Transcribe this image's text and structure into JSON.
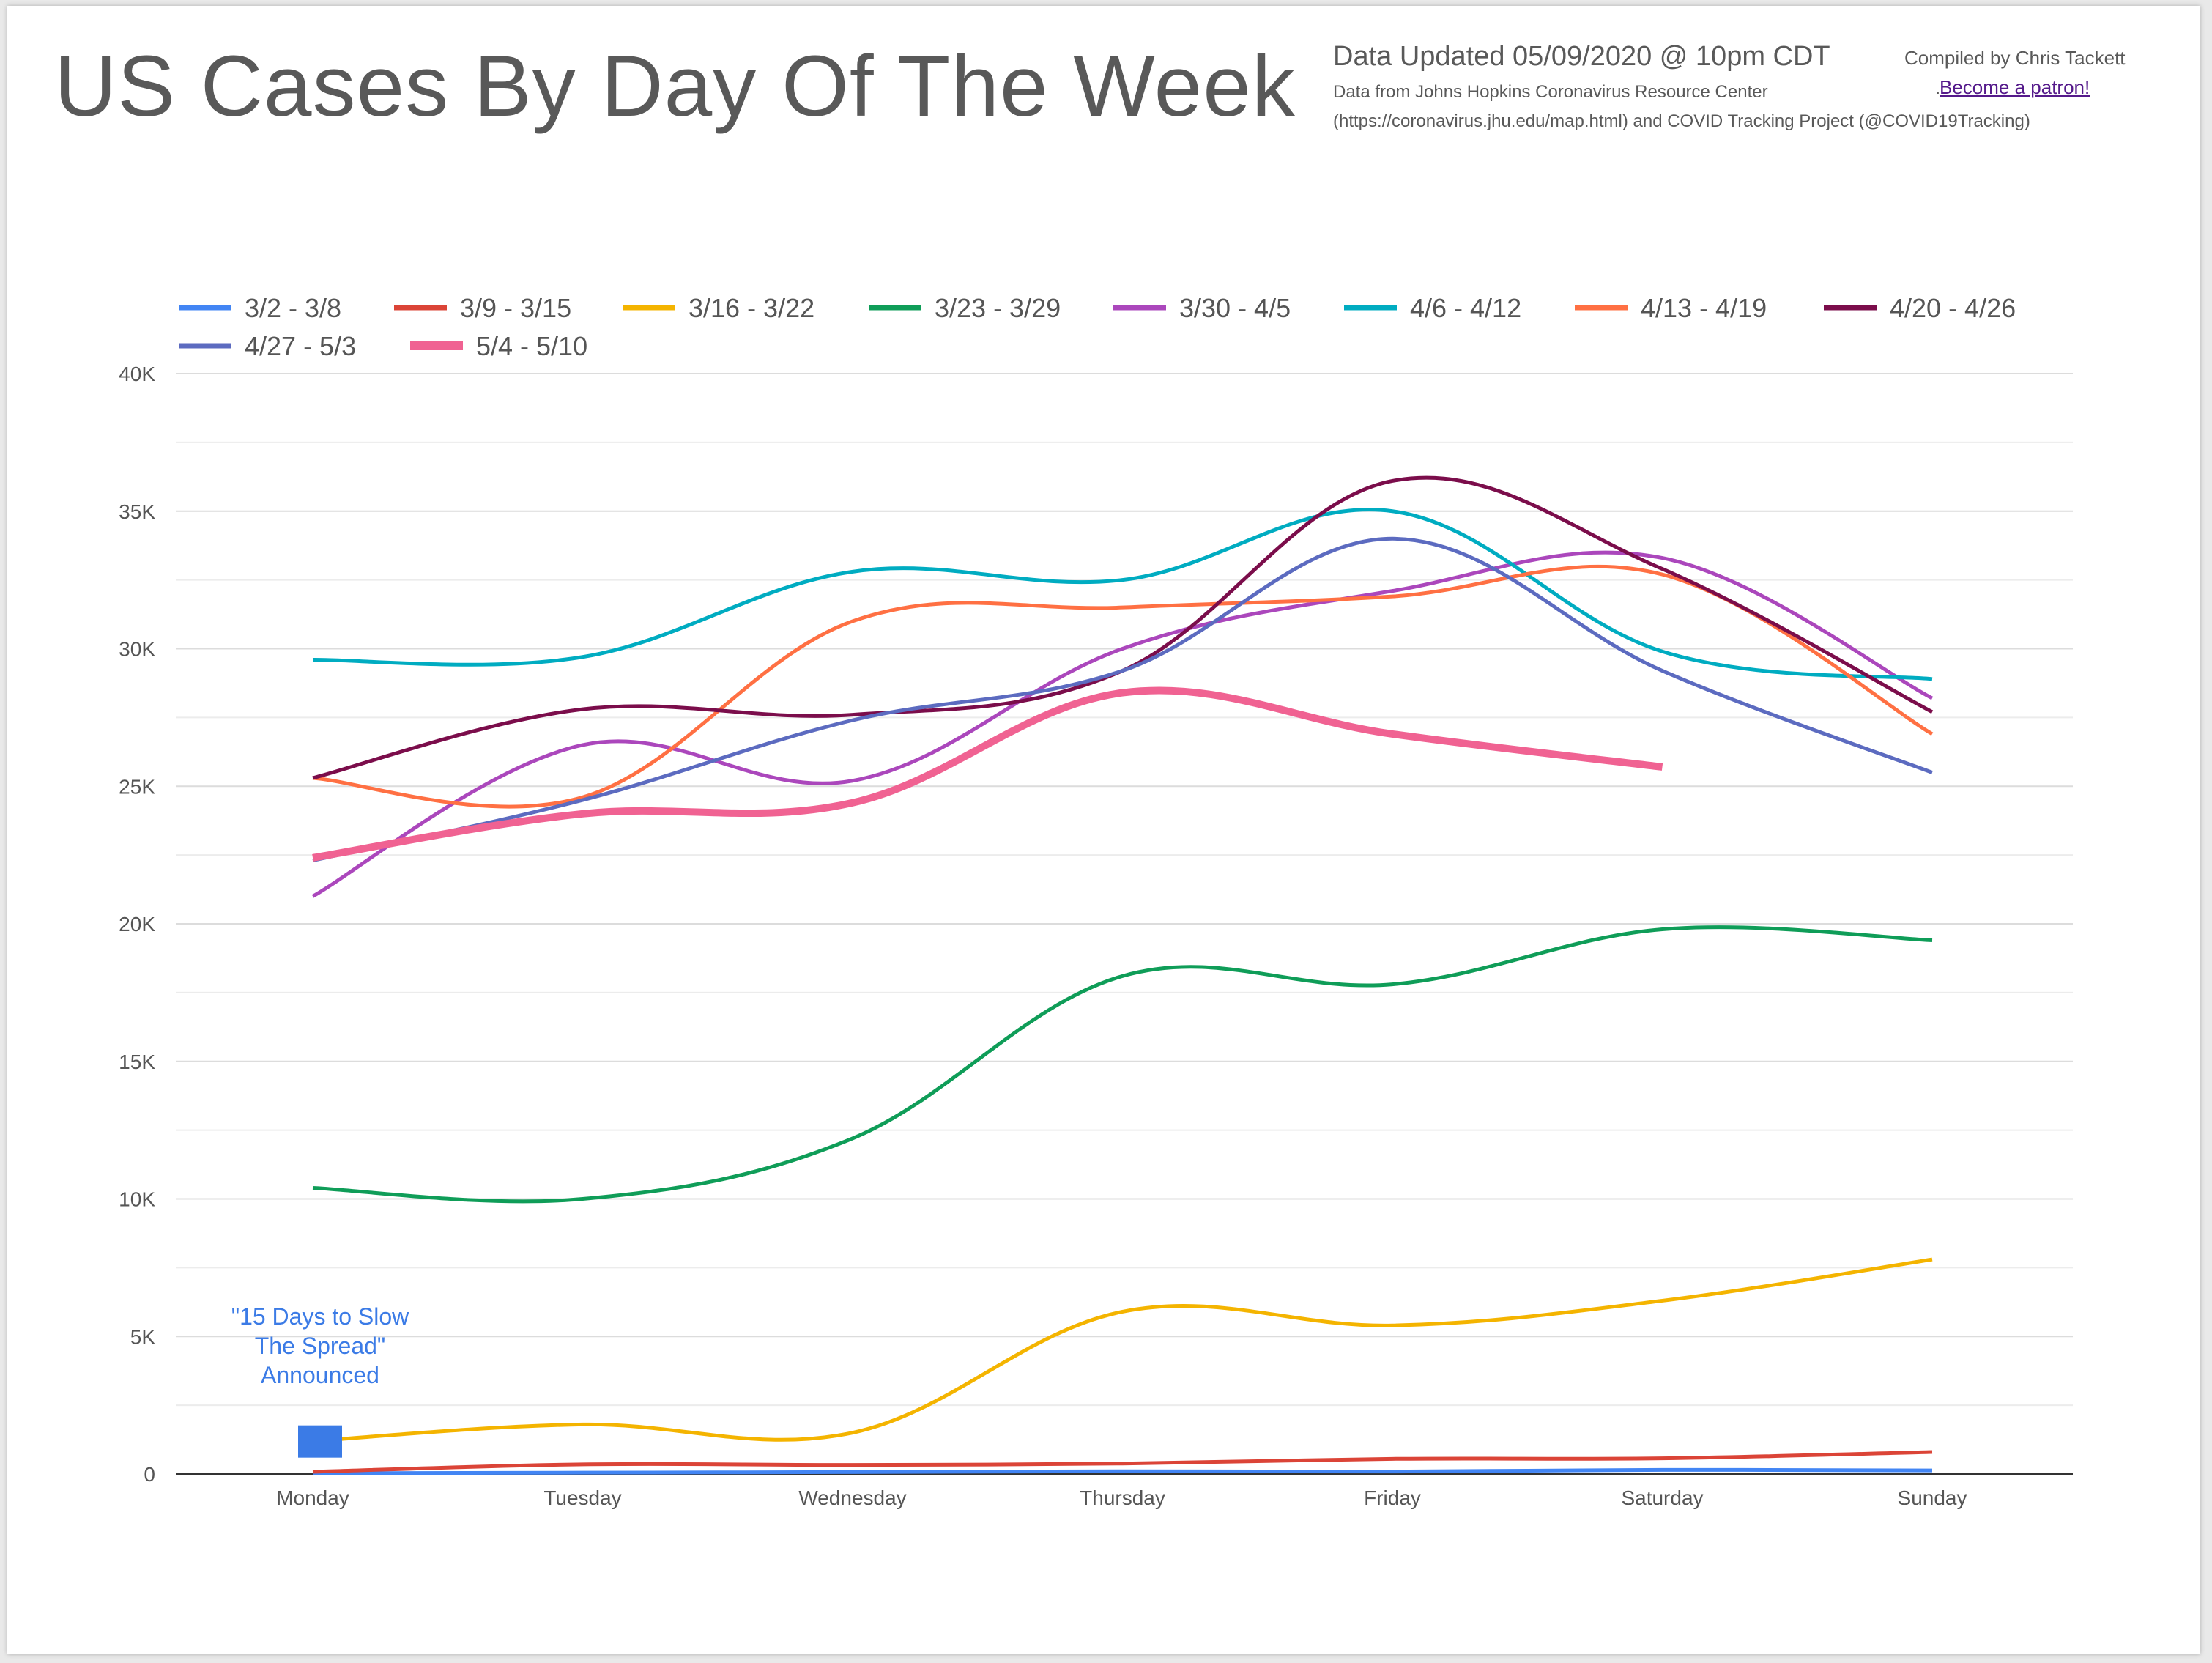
{
  "header": {
    "title": "US Cases By Day Of The Week",
    "updated": "Data Updated 05/09/2020 @ 10pm CDT",
    "source_line1": "Data from Johns Hopkins Coronavirus Resource Center",
    "source_line2": "(https://coronavirus.jhu.edu/map.html) and COVID Tracking Project (@COVID19Tracking)",
    "compiled_by": "Compiled by Chris Tackett",
    "patron_prefix": ".",
    "patron_link": "Become a patron!"
  },
  "annotation": {
    "lines": [
      "\"15 Days to Slow",
      "The Spread\"",
      "Announced"
    ],
    "category": "Monday",
    "value": 1500,
    "color": "#3b7be6"
  },
  "chart_data": {
    "type": "line",
    "title": "US Cases By Day Of The Week",
    "xlabel": "",
    "ylabel": "",
    "ylim": [
      0,
      40000
    ],
    "y_ticks": [
      0,
      5000,
      10000,
      15000,
      20000,
      25000,
      30000,
      35000,
      40000
    ],
    "y_tick_labels": [
      "0",
      "5K",
      "10K",
      "15K",
      "20K",
      "25K",
      "30K",
      "35K",
      "40K"
    ],
    "grid": true,
    "legend_position": "top",
    "categories": [
      "Monday",
      "Tuesday",
      "Wednesday",
      "Thursday",
      "Friday",
      "Saturday",
      "Sunday"
    ],
    "series": [
      {
        "name": "3/2 - 3/8",
        "color": "#4285f4",
        "width": 5,
        "values": [
          30,
          50,
          70,
          100,
          90,
          150,
          130
        ]
      },
      {
        "name": "3/9 - 3/15",
        "color": "#db4437",
        "width": 5,
        "values": [
          80,
          350,
          330,
          380,
          550,
          570,
          800
        ]
      },
      {
        "name": "3/16 - 3/22",
        "color": "#f4b400",
        "width": 5,
        "values": [
          1200,
          1800,
          1500,
          5900,
          5400,
          6300,
          7800
        ]
      },
      {
        "name": "3/23 - 3/29",
        "color": "#0f9d58",
        "width": 5,
        "values": [
          10400,
          10000,
          12200,
          18100,
          17800,
          19800,
          19400
        ]
      },
      {
        "name": "3/30 - 4/5",
        "color": "#ab47bc",
        "width": 5,
        "values": [
          21000,
          26500,
          25200,
          30000,
          32100,
          33300,
          28200
        ]
      },
      {
        "name": "4/6 - 4/12",
        "color": "#00acc1",
        "width": 5,
        "values": [
          29600,
          29700,
          32800,
          32500,
          35000,
          29900,
          28900
        ]
      },
      {
        "name": "4/13 - 4/19",
        "color": "#ff7043",
        "width": 5,
        "values": [
          25300,
          24600,
          31000,
          31500,
          31900,
          32700,
          26900
        ]
      },
      {
        "name": "4/20 - 4/26",
        "color": "#7b0d4b",
        "width": 5,
        "values": [
          25300,
          27800,
          27600,
          29200,
          36100,
          32900,
          27700
        ]
      },
      {
        "name": "4/27 - 5/3",
        "color": "#5c6bc0",
        "width": 5,
        "values": [
          22300,
          24500,
          27400,
          29200,
          34000,
          29200,
          25500
        ]
      },
      {
        "name": "5/4 - 5/10",
        "color": "#f06292",
        "width": 10,
        "values": [
          22400,
          24000,
          24400,
          28400,
          26900,
          25700,
          null
        ]
      }
    ]
  }
}
